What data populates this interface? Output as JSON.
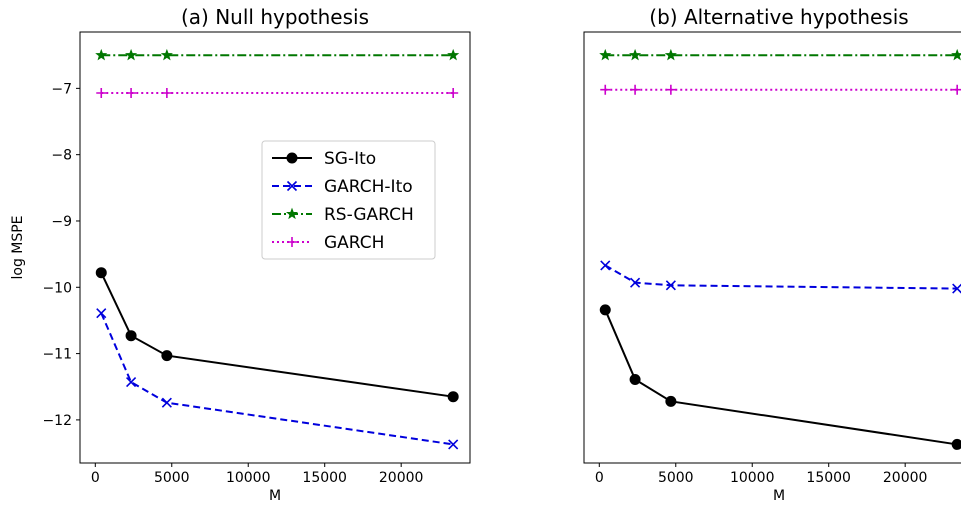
{
  "chart_data": [
    {
      "type": "line",
      "title": "(a) Null hypothesis",
      "xlabel": "M",
      "ylabel": "log MSPE",
      "xlim": [
        -1000,
        24500
      ],
      "ylim": [
        -12.65,
        -6.15
      ],
      "xticks": [
        0,
        5000,
        10000,
        15000,
        20000
      ],
      "yticks": [
        -12,
        -11,
        -10,
        -9,
        -8,
        -7
      ],
      "x": [
        390,
        2340,
        4680,
        23400
      ],
      "grid": false,
      "legend": "center-right",
      "series": [
        {
          "name": "SG-Ito",
          "values": [
            -9.78,
            -10.73,
            -11.03,
            -11.65
          ],
          "color": "#000000",
          "style": "solid",
          "marker": "circle"
        },
        {
          "name": "GARCH-Ito",
          "values": [
            -10.39,
            -11.43,
            -11.74,
            -12.37
          ],
          "color": "#0000dd",
          "style": "dashed",
          "marker": "x"
        },
        {
          "name": "RS-GARCH",
          "values": [
            -6.5,
            -6.5,
            -6.5,
            -6.5
          ],
          "color": "#007700",
          "style": "dashdot",
          "marker": "star"
        },
        {
          "name": "GARCH",
          "values": [
            -7.07,
            -7.07,
            -7.07,
            -7.07
          ],
          "color": "#cc00cc",
          "style": "dotted",
          "marker": "plus"
        }
      ]
    },
    {
      "type": "line",
      "title": "(b) Alternative hypothesis",
      "xlabel": "M",
      "ylabel": "",
      "xlim": [
        -1000,
        24500
      ],
      "ylim": [
        -12.65,
        -6.15
      ],
      "xticks": [
        0,
        5000,
        10000,
        15000,
        20000
      ],
      "yticks": [],
      "x": [
        390,
        2340,
        4680,
        23400
      ],
      "grid": false,
      "series": [
        {
          "name": "SG-Ito",
          "values": [
            -10.34,
            -11.39,
            -11.72,
            -12.37
          ],
          "color": "#000000",
          "style": "solid",
          "marker": "circle"
        },
        {
          "name": "GARCH-Ito",
          "values": [
            -9.67,
            -9.93,
            -9.97,
            -10.02
          ],
          "color": "#0000dd",
          "style": "dashed",
          "marker": "x"
        },
        {
          "name": "RS-GARCH",
          "values": [
            -6.5,
            -6.5,
            -6.5,
            -6.5
          ],
          "color": "#007700",
          "style": "dashdot",
          "marker": "star"
        },
        {
          "name": "GARCH",
          "values": [
            -7.02,
            -7.02,
            -7.02,
            -7.02
          ],
          "color": "#cc00cc",
          "style": "dotted",
          "marker": "plus"
        }
      ]
    }
  ]
}
